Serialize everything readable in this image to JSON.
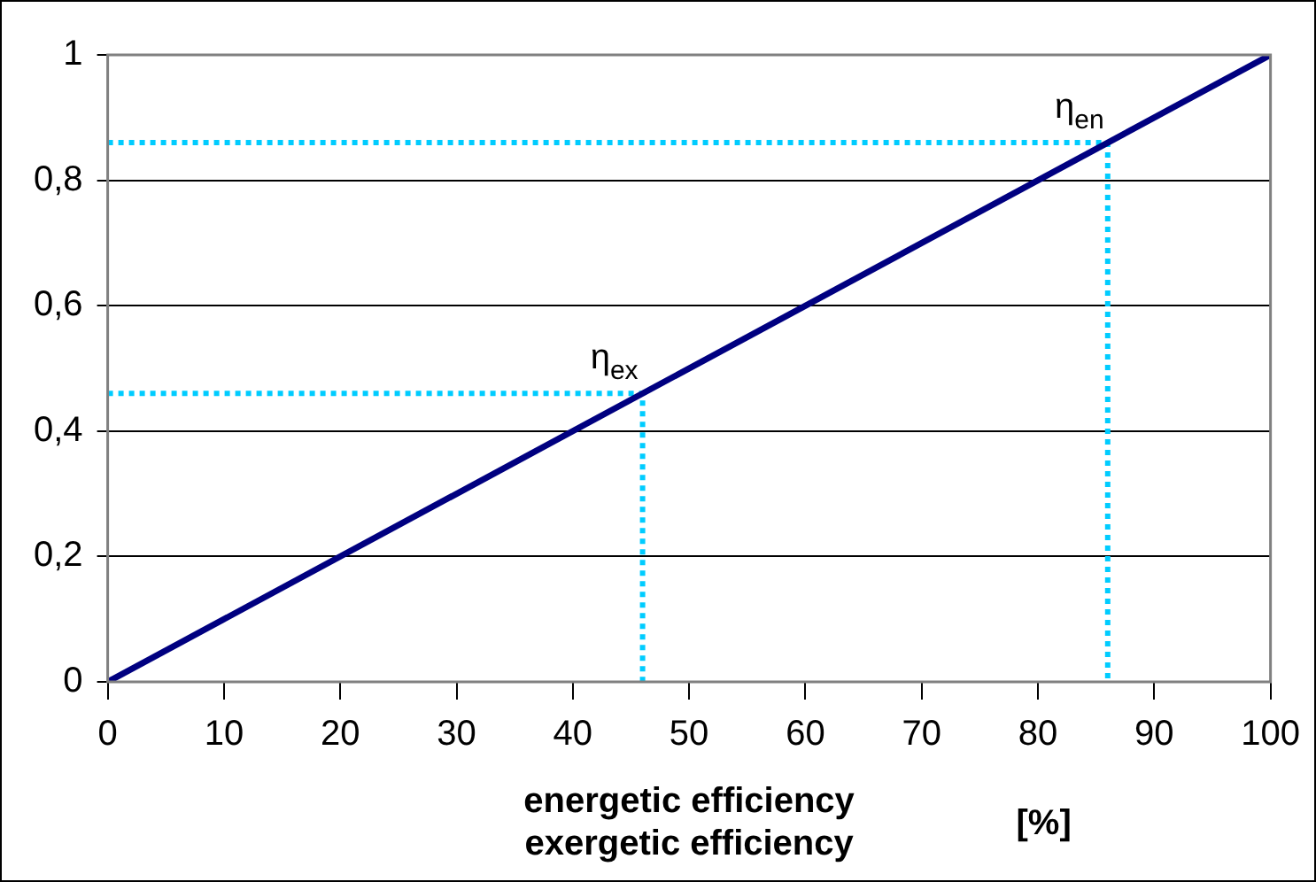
{
  "chart_data": {
    "type": "line",
    "xlabel": "energetic efficiency\nexergetic efficiency",
    "series": [
      {
        "color": "#000080",
        "x": [
          0,
          100
        ],
        "values": [
          0,
          1
        ]
      },
      {
        "color": "#00ccff",
        "line_style": "dotted",
        "x": [
          0,
          46,
          46
        ],
        "values": [
          0.46,
          0.46,
          0
        ]
      },
      {
        "color": "#00ccff",
        "line_style": "dotted",
        "x": [
          0,
          86,
          86
        ],
        "values": [
          0.86,
          0.86,
          0
        ]
      }
    ],
    "annotations": [
      {
        "text": "η$_{ex}$",
        "x": 46,
        "y": 0.46
      },
      {
        "text": "η$_{en}$",
        "x": 86,
        "y": 0.86
      },
      "[%]"
    ],
    "xlim": [
      0,
      100
    ],
    "xticks": [
      0,
      10,
      20,
      30,
      40,
      50,
      60,
      70,
      80,
      90,
      100
    ],
    "ylim": [
      0,
      1
    ],
    "yticks": [
      0,
      {
        "value": 0.2,
        "label": "0,2"
      },
      {
        "value": 0.4,
        "label": "0,4"
      },
      {
        "value": 0.6,
        "label": "0,6"
      },
      {
        "value": 0.8,
        "label": "0,8"
      },
      1
    ],
    "grid": "y",
    "legend": false,
    "marker": "none"
  }
}
